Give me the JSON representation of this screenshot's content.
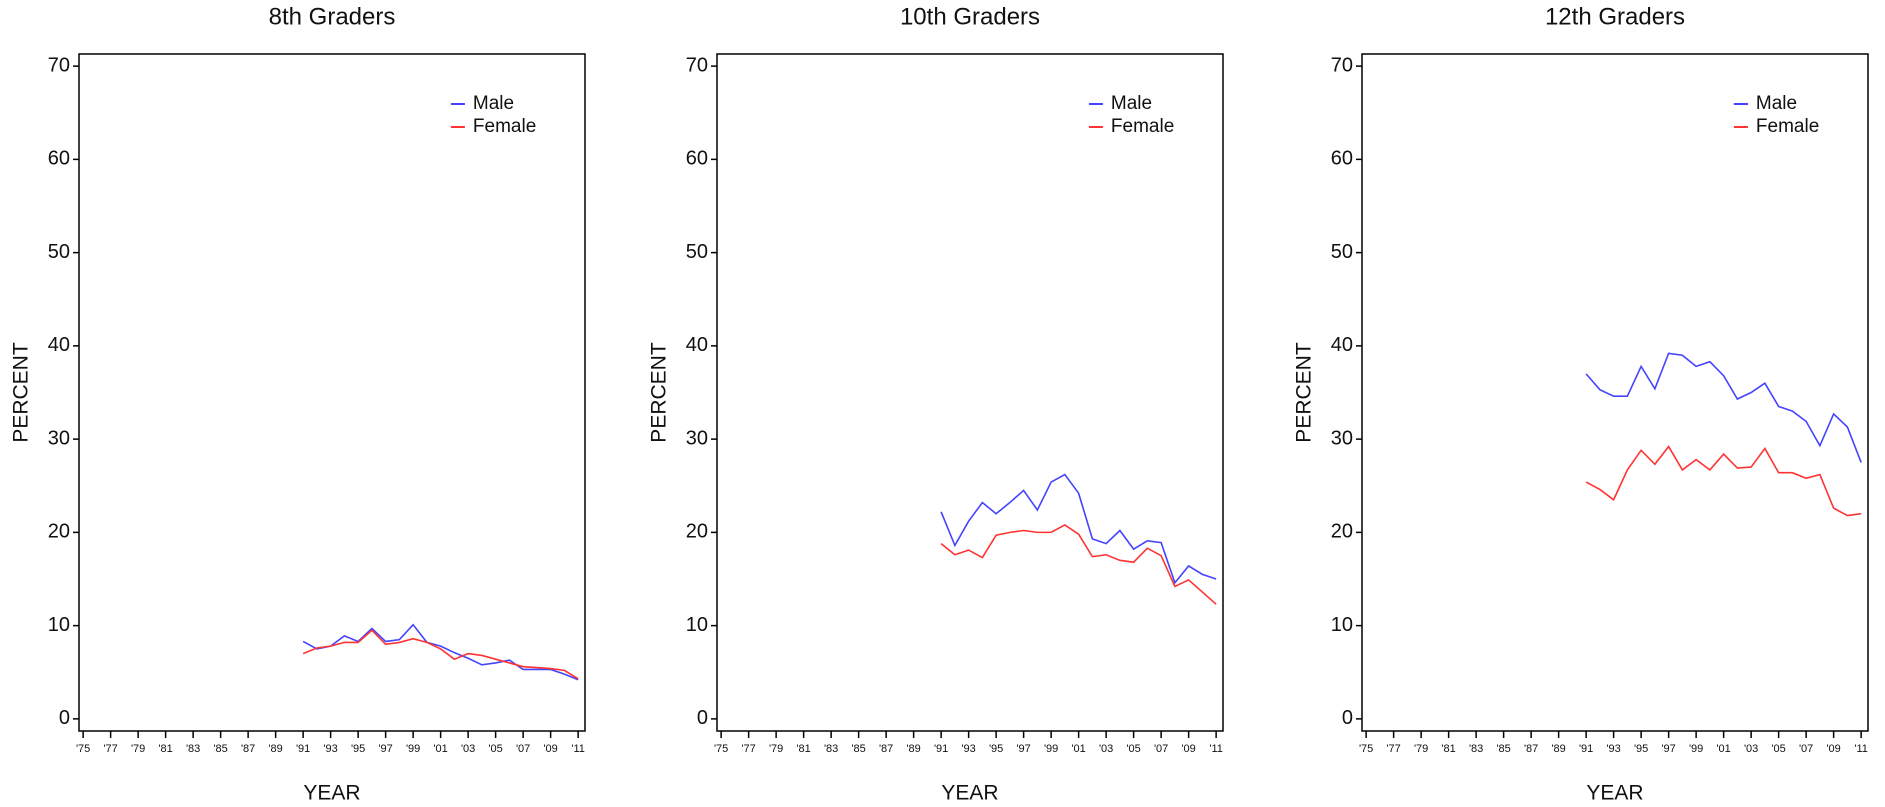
{
  "chart_data": [
    {
      "type": "line",
      "title": "8th Graders",
      "x_label": "YEAR",
      "y_label": "PERCENT",
      "x": [
        1991,
        1992,
        1993,
        1994,
        1995,
        1996,
        1997,
        1998,
        1999,
        2000,
        2001,
        2002,
        2003,
        2004,
        2005,
        2006,
        2007,
        2008,
        2009,
        2010,
        2011
      ],
      "series": [
        {
          "name": "Male",
          "color": "#4444ff",
          "values": [
            8.3,
            7.5,
            7.8,
            8.9,
            8.3,
            9.7,
            8.3,
            8.5,
            10.1,
            8.2,
            7.8,
            7.1,
            6.5,
            5.8,
            6.0,
            6.3,
            5.3,
            5.3,
            5.3,
            4.8,
            4.2
          ]
        },
        {
          "name": "Female",
          "color": "#ff3333",
          "values": [
            7.0,
            7.6,
            7.8,
            8.2,
            8.2,
            9.5,
            8.0,
            8.2,
            8.6,
            8.2,
            7.5,
            6.4,
            7.0,
            6.8,
            6.4,
            6.0,
            5.6,
            5.5,
            5.4,
            5.2,
            4.3
          ]
        }
      ],
      "xlim": [
        1974.7,
        2011.5
      ],
      "ylim": [
        -1.3,
        71.3
      ],
      "xticks": [
        {
          "value": 1975,
          "label": "'75"
        },
        {
          "value": 1977,
          "label": "'77"
        },
        {
          "value": 1979,
          "label": "'79"
        },
        {
          "value": 1981,
          "label": "'81"
        },
        {
          "value": 1983,
          "label": "'83"
        },
        {
          "value": 1985,
          "label": "'85"
        },
        {
          "value": 1987,
          "label": "'87"
        },
        {
          "value": 1989,
          "label": "'89"
        },
        {
          "value": 1991,
          "label": "'91"
        },
        {
          "value": 1993,
          "label": "'93"
        },
        {
          "value": 1995,
          "label": "'95"
        },
        {
          "value": 1997,
          "label": "'97"
        },
        {
          "value": 1999,
          "label": "'99"
        },
        {
          "value": 2001,
          "label": "'01"
        },
        {
          "value": 2003,
          "label": "'03"
        },
        {
          "value": 2005,
          "label": "'05"
        },
        {
          "value": 2007,
          "label": "'07"
        },
        {
          "value": 2009,
          "label": "'09"
        },
        {
          "value": 2011,
          "label": "'11"
        }
      ],
      "yticks": [
        0,
        10,
        20,
        30,
        40,
        50,
        60,
        70
      ],
      "legend": "upper right"
    },
    {
      "type": "line",
      "title": "10th Graders",
      "x_label": "YEAR",
      "y_label": "PERCENT",
      "x": [
        1991,
        1992,
        1993,
        1994,
        1995,
        1996,
        1997,
        1998,
        1999,
        2000,
        2001,
        2002,
        2003,
        2004,
        2005,
        2006,
        2007,
        2008,
        2009,
        2010,
        2011
      ],
      "series": [
        {
          "name": "Male",
          "color": "#4444ff",
          "values": [
            22.2,
            18.6,
            21.2,
            23.2,
            22.0,
            23.2,
            24.5,
            22.4,
            25.4,
            26.2,
            24.2,
            19.3,
            18.8,
            20.2,
            18.2,
            19.1,
            18.9,
            14.6,
            16.4,
            15.5,
            15.0
          ]
        },
        {
          "name": "Female",
          "color": "#ff3333",
          "values": [
            18.8,
            17.6,
            18.1,
            17.3,
            19.7,
            20.0,
            20.2,
            20.0,
            20.0,
            20.8,
            19.8,
            17.4,
            17.6,
            17.0,
            16.8,
            18.3,
            17.5,
            14.2,
            14.9,
            13.6,
            12.3
          ]
        }
      ],
      "xlim": [
        1974.7,
        2011.5
      ],
      "ylim": [
        -1.3,
        71.3
      ],
      "xticks": [
        {
          "value": 1975,
          "label": "'75"
        },
        {
          "value": 1977,
          "label": "'77"
        },
        {
          "value": 1979,
          "label": "'79"
        },
        {
          "value": 1981,
          "label": "'81"
        },
        {
          "value": 1983,
          "label": "'83"
        },
        {
          "value": 1985,
          "label": "'85"
        },
        {
          "value": 1987,
          "label": "'87"
        },
        {
          "value": 1989,
          "label": "'89"
        },
        {
          "value": 1991,
          "label": "'91"
        },
        {
          "value": 1993,
          "label": "'93"
        },
        {
          "value": 1995,
          "label": "'95"
        },
        {
          "value": 1997,
          "label": "'97"
        },
        {
          "value": 1999,
          "label": "'99"
        },
        {
          "value": 2001,
          "label": "'01"
        },
        {
          "value": 2003,
          "label": "'03"
        },
        {
          "value": 2005,
          "label": "'05"
        },
        {
          "value": 2007,
          "label": "'07"
        },
        {
          "value": 2009,
          "label": "'09"
        },
        {
          "value": 2011,
          "label": "'11"
        }
      ],
      "yticks": [
        0,
        10,
        20,
        30,
        40,
        50,
        60,
        70
      ],
      "legend": "upper right"
    },
    {
      "type": "line",
      "title": "12th Graders",
      "x_label": "YEAR",
      "y_label": "PERCENT",
      "x": [
        1991,
        1992,
        1993,
        1994,
        1995,
        1996,
        1997,
        1998,
        1999,
        2000,
        2001,
        2002,
        2003,
        2004,
        2005,
        2006,
        2007,
        2008,
        2009,
        2010,
        2011
      ],
      "series": [
        {
          "name": "Male",
          "color": "#4444ff",
          "values": [
            37.0,
            35.3,
            34.6,
            34.6,
            37.8,
            35.4,
            39.2,
            39.0,
            37.8,
            38.3,
            36.8,
            34.3,
            35.0,
            36.0,
            33.5,
            33.0,
            31.9,
            29.3,
            32.7,
            31.3,
            27.5
          ]
        },
        {
          "name": "Female",
          "color": "#ff3333",
          "values": [
            25.4,
            24.6,
            23.5,
            26.7,
            28.8,
            27.3,
            29.2,
            26.7,
            27.8,
            26.7,
            28.4,
            26.9,
            27.0,
            29.0,
            26.4,
            26.4,
            25.8,
            26.2,
            22.6,
            21.8,
            22.0
          ]
        }
      ],
      "xlim": [
        1974.7,
        2011.5
      ],
      "ylim": [
        -1.3,
        71.3
      ],
      "xticks": [
        {
          "value": 1975,
          "label": "'75"
        },
        {
          "value": 1977,
          "label": "'77"
        },
        {
          "value": 1979,
          "label": "'79"
        },
        {
          "value": 1981,
          "label": "'81"
        },
        {
          "value": 1983,
          "label": "'83"
        },
        {
          "value": 1985,
          "label": "'85"
        },
        {
          "value": 1987,
          "label": "'87"
        },
        {
          "value": 1989,
          "label": "'89"
        },
        {
          "value": 1991,
          "label": "'91"
        },
        {
          "value": 1993,
          "label": "'93"
        },
        {
          "value": 1995,
          "label": "'95"
        },
        {
          "value": 1997,
          "label": "'97"
        },
        {
          "value": 1999,
          "label": "'99"
        },
        {
          "value": 2001,
          "label": "'01"
        },
        {
          "value": 2003,
          "label": "'03"
        },
        {
          "value": 2005,
          "label": "'05"
        },
        {
          "value": 2007,
          "label": "'07"
        },
        {
          "value": 2009,
          "label": "'09"
        },
        {
          "value": 2011,
          "label": "'11"
        }
      ],
      "yticks": [
        0,
        10,
        20,
        30,
        40,
        50,
        60,
        70
      ],
      "legend": "upper right"
    }
  ]
}
